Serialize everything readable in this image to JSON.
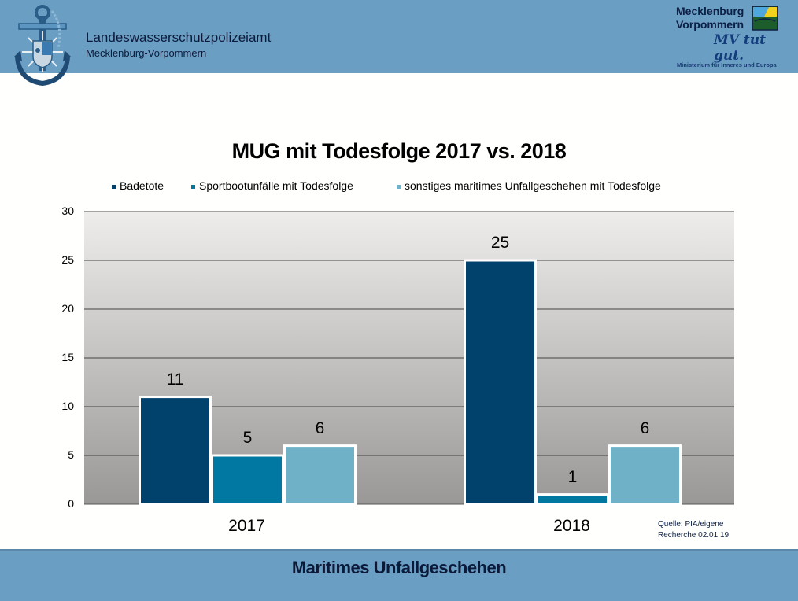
{
  "header": {
    "org_name": "Landeswasserschutzpolizeiamt",
    "org_sub": "Mecklenburg-Vorpommern",
    "mv_logo_line1": "Mecklenburg",
    "mv_logo_line2": "Vorpommern",
    "mv_slogan": "MV tut gut.",
    "ministry": "Ministerium für Inneres und Europa"
  },
  "chart_data": {
    "type": "bar",
    "title": "MUG mit Todesfolge 2017 vs. 2018",
    "xlabel": "",
    "ylabel": "",
    "categories": [
      "2017",
      "2018"
    ],
    "series": [
      {
        "name": "Badetote",
        "color": "#00426b",
        "values": [
          11,
          25
        ]
      },
      {
        "name": "Sportbootunfälle mit Todesfolge",
        "color": "#0078a2",
        "values": [
          5,
          1
        ]
      },
      {
        "name": "sonstiges maritimes Unfallgeschehen mit Todesfolge",
        "color": "#6fb2c8",
        "values": [
          6,
          6
        ]
      }
    ],
    "ylim": [
      0,
      30
    ],
    "yticks": [
      "0",
      "5",
      "10",
      "15",
      "20",
      "25",
      "30"
    ],
    "grid": true,
    "legend_position": "top",
    "data_labels": true
  },
  "source": {
    "line1": "Quelle:  PIA/eigene",
    "line2": "Recherche  02.01.19"
  },
  "footer": {
    "title": "Maritimes Unfallgeschehen"
  }
}
